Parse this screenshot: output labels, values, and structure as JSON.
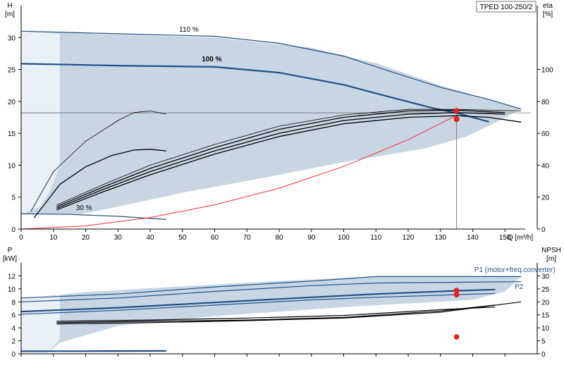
{
  "title_box": "TPED 100-250/2",
  "colors": {
    "envelope_fill": "#c8d6e4",
    "envelope_light": "#e8f0f8",
    "pump_curve": "#1f4f86",
    "efficiency": "#000000",
    "system_curve": "#ff2a2a",
    "duty_marker": "#ff1a1a",
    "axis": "#000000",
    "duty_lines": "#7a7a7a"
  },
  "chart_data": [
    {
      "id": "head_efficiency",
      "type": "line",
      "xlabel": "Q [m³/h]",
      "ylabel": "H",
      "ylabel_unit": "[m]",
      "y2label": "eta",
      "y2label_unit": "[%]",
      "xlim": [
        0,
        160
      ],
      "ylim": [
        0,
        35
      ],
      "y2lim": [
        0,
        140
      ],
      "x_ticks": [
        0,
        10,
        20,
        30,
        40,
        50,
        60,
        70,
        80,
        90,
        100,
        110,
        120,
        130,
        140,
        150
      ],
      "y_ticks": [
        0,
        5,
        10,
        15,
        20,
        25,
        30
      ],
      "y2_ticks": [
        0,
        20,
        40,
        60,
        80,
        100
      ],
      "envelope": [
        [
          0,
          31
        ],
        [
          22,
          30.6
        ],
        [
          60,
          30
        ],
        [
          90,
          28.4
        ],
        [
          110,
          26
        ],
        [
          130,
          22.5
        ],
        [
          155,
          18.8
        ],
        [
          148,
          16.9
        ],
        [
          138,
          14.5
        ],
        [
          125,
          12.6
        ],
        [
          100,
          10.5
        ],
        [
          75,
          8
        ],
        [
          50,
          5.7
        ],
        [
          30,
          3.5
        ],
        [
          18,
          2.3
        ],
        [
          0,
          2.3
        ]
      ],
      "envelope_left_light": [
        [
          0,
          31
        ],
        [
          12,
          30.6
        ],
        [
          12,
          10
        ],
        [
          9,
          6
        ],
        [
          6,
          3.5
        ],
        [
          0,
          2.3
        ]
      ],
      "series": [
        {
          "name": "110 %",
          "kind": "pump",
          "width": 1.2,
          "points": [
            [
              0,
              31
            ],
            [
              30,
              30.6
            ],
            [
              60,
              30.2
            ],
            [
              80,
              29.1
            ],
            [
              100,
              27.1
            ],
            [
              115,
              24.6
            ],
            [
              130,
              22.2
            ],
            [
              145,
              20.3
            ],
            [
              155,
              18.8
            ]
          ]
        },
        {
          "name": "100 %",
          "kind": "pump",
          "width": 2.2,
          "points": [
            [
              0,
              25.9
            ],
            [
              30,
              25.6
            ],
            [
              60,
              25.4
            ],
            [
              80,
              24.5
            ],
            [
              100,
              22.6
            ],
            [
              115,
              20.6
            ],
            [
              128,
              18.9
            ],
            [
              135,
              18.2
            ],
            [
              145,
              16.8
            ]
          ]
        },
        {
          "name": "30 %",
          "kind": "pump",
          "width": 1.2,
          "points": [
            [
              0,
              2.4
            ],
            [
              15,
              2.3
            ],
            [
              30,
              2.0
            ],
            [
              45,
              1.5
            ]
          ]
        },
        {
          "name": "",
          "kind": "system",
          "width": 1,
          "points": [
            [
              0,
              0
            ],
            [
              20,
              0.5
            ],
            [
              40,
              1.8
            ],
            [
              60,
              3.8
            ],
            [
              80,
              6.4
            ],
            [
              100,
              9.8
            ],
            [
              120,
              14.0
            ],
            [
              135,
              17.8
            ]
          ]
        },
        {
          "name": "",
          "kind": "eta",
          "width": 0.8,
          "eta": true,
          "points": [
            [
              3,
              11
            ],
            [
              10,
              36
            ],
            [
              20,
              55
            ],
            [
              30,
              68
            ],
            [
              35,
              73
            ],
            [
              40,
              74
            ],
            [
              45,
              72
            ]
          ]
        },
        {
          "name": "",
          "kind": "eta",
          "width": 1.3,
          "eta": true,
          "points": [
            [
              4,
              7
            ],
            [
              12,
              28
            ],
            [
              20,
              39
            ],
            [
              28,
              46
            ],
            [
              35,
              49.5
            ],
            [
              40,
              50
            ],
            [
              45,
              49
            ]
          ]
        },
        {
          "name": "",
          "kind": "eta",
          "width": 1.3,
          "eta": true,
          "points": [
            [
              11,
              12
            ],
            [
              25,
              23
            ],
            [
              40,
              34
            ],
            [
              60,
              47
            ],
            [
              80,
              58
            ],
            [
              100,
              66
            ],
            [
              120,
              70
            ],
            [
              135,
              71
            ],
            [
              145,
              70
            ],
            [
              155,
              67
            ]
          ]
        },
        {
          "name": "",
          "kind": "eta",
          "width": 1.3,
          "eta": true,
          "points": [
            [
              11,
              13
            ],
            [
              25,
              24.5
            ],
            [
              40,
              36
            ],
            [
              60,
              49
            ],
            [
              80,
              60
            ],
            [
              100,
              68
            ],
            [
              120,
              72
            ],
            [
              135,
              73
            ],
            [
              150,
              72
            ]
          ]
        },
        {
          "name": "",
          "kind": "eta",
          "width": 1.3,
          "eta": true,
          "points": [
            [
              11,
              14
            ],
            [
              25,
              26
            ],
            [
              40,
              38
            ],
            [
              60,
              51
            ],
            [
              80,
              62.5
            ],
            [
              100,
              70
            ],
            [
              120,
              74
            ],
            [
              135,
              74.5
            ],
            [
              150,
              73
            ]
          ]
        },
        {
          "name": "",
          "kind": "eta",
          "width": 0.8,
          "eta": true,
          "points": [
            [
              11,
              15
            ],
            [
              25,
              27.5
            ],
            [
              40,
              40
            ],
            [
              60,
              53
            ],
            [
              80,
              64.5
            ],
            [
              100,
              71.5
            ],
            [
              120,
              75
            ],
            [
              135,
              75
            ],
            [
              155,
              74
            ]
          ]
        }
      ],
      "annotations": [
        {
          "text": "110 %",
          "x": 49,
          "y": 30.9,
          "bold": false
        },
        {
          "text": "100 %",
          "x": 56,
          "y": 26.3,
          "bold": true
        },
        {
          "text": "30 %",
          "x": 17,
          "y": 3.0,
          "bold": false
        }
      ],
      "duty_point": {
        "q": 135,
        "h": 18.2
      },
      "markers": [
        {
          "x": 135,
          "y": 18.5
        },
        {
          "x": 135,
          "y": 17.2
        }
      ]
    },
    {
      "id": "power_npsh",
      "type": "line",
      "ylabel": "P",
      "ylabel_unit": "[kW]",
      "y2label": "NPSH",
      "y2label_unit": "[m]",
      "xlim": [
        0,
        160
      ],
      "ylim": [
        0,
        14
      ],
      "y2lim": [
        0,
        35
      ],
      "y_ticks": [
        0,
        2,
        4,
        6,
        8,
        10,
        12
      ],
      "y2_ticks": [
        0,
        5,
        10,
        15,
        20,
        25,
        30
      ],
      "envelope": [
        [
          0,
          8.5
        ],
        [
          20,
          9.5
        ],
        [
          50,
          10.4
        ],
        [
          80,
          11.2
        ],
        [
          110,
          11.9
        ],
        [
          155,
          11.9
        ],
        [
          150,
          9.6
        ],
        [
          140,
          8.3
        ],
        [
          100,
          7.2
        ],
        [
          60,
          5.8
        ],
        [
          30,
          4.3
        ],
        [
          12,
          1.7
        ],
        [
          8,
          0
        ],
        [
          0,
          0
        ]
      ],
      "envelope_left_light": [
        [
          0,
          8.6
        ],
        [
          12,
          9.0
        ],
        [
          12,
          2.3
        ],
        [
          9,
          0.5
        ],
        [
          8,
          0
        ],
        [
          0,
          0
        ]
      ],
      "series": [
        {
          "name": "",
          "kind": "pump",
          "width": 1.2,
          "points": [
            [
              0,
              8.6
            ],
            [
              30,
              9.2
            ],
            [
              60,
              10.3
            ],
            [
              90,
              11.2
            ],
            [
              110,
              11.9
            ],
            [
              155,
              11.9
            ]
          ]
        },
        {
          "name": "",
          "kind": "pump",
          "width": 1.2,
          "points": [
            [
              0,
              8.0
            ],
            [
              30,
              8.6
            ],
            [
              60,
              9.6
            ],
            [
              90,
              10.5
            ],
            [
              110,
              10.9
            ],
            [
              155,
              11.1
            ]
          ]
        },
        {
          "name": "",
          "kind": "pump",
          "width": 2.2,
          "points": [
            [
              0,
              6.5
            ],
            [
              30,
              7.1
            ],
            [
              60,
              7.9
            ],
            [
              90,
              8.7
            ],
            [
              110,
              9.2
            ],
            [
              135,
              9.7
            ],
            [
              147,
              9.9
            ]
          ]
        },
        {
          "name": "",
          "kind": "pump",
          "width": 1.2,
          "points": [
            [
              0,
              6.1
            ],
            [
              30,
              6.7
            ],
            [
              60,
              7.5
            ],
            [
              90,
              8.3
            ],
            [
              110,
              8.7
            ],
            [
              135,
              9.1
            ],
            [
              147,
              9.3
            ]
          ]
        },
        {
          "name": "",
          "kind": "pump",
          "width": 2.2,
          "points": [
            [
              0,
              0.4
            ],
            [
              20,
              0.4
            ],
            [
              45,
              0.45
            ]
          ]
        },
        {
          "name": "",
          "kind": "eta",
          "width": 1.2,
          "npsh": true,
          "points": [
            [
              11,
              4.8
            ],
            [
              40,
              5
            ],
            [
              70,
              5.2
            ],
            [
              100,
              5.6
            ],
            [
              130,
              6.6
            ],
            [
              147,
              7.5
            ]
          ]
        },
        {
          "name": "",
          "kind": "eta",
          "width": 1.2,
          "npsh": true,
          "points": [
            [
              11,
              4.6
            ],
            [
              40,
              4.8
            ],
            [
              70,
              5.1
            ],
            [
              100,
              5.5
            ],
            [
              130,
              6.4
            ],
            [
              155,
              8.0
            ]
          ]
        },
        {
          "name": "",
          "kind": "eta",
          "width": 1.2,
          "npsh": true,
          "points": [
            [
              11,
              5.0
            ],
            [
              40,
              5.2
            ],
            [
              70,
              5.5
            ],
            [
              100,
              5.9
            ],
            [
              130,
              6.8
            ],
            [
              147,
              7.2
            ]
          ]
        }
      ],
      "legend_labels": [
        {
          "text": "P1 (motor+freq.converter)",
          "x": 140.5,
          "y": 12.6
        },
        {
          "text": "P2",
          "x": 153,
          "y": 10.0
        }
      ],
      "markers": [
        {
          "x": 135,
          "y": 9.75
        },
        {
          "x": 135,
          "y": 9.1
        },
        {
          "x": 135,
          "y": 2.6
        }
      ]
    }
  ]
}
